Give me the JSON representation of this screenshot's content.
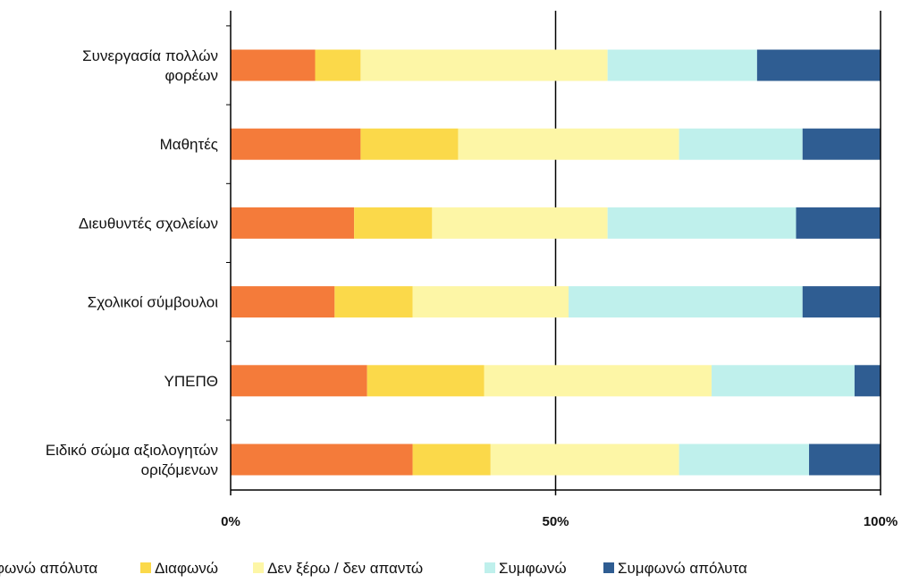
{
  "chart_data": {
    "type": "bar",
    "orientation": "horizontal",
    "stacked": "percent",
    "categories": [
      "Συνεργασία πολλών φορέων",
      "Μαθητές",
      "Διευθυντές σχολείων",
      "Σχολικοί σύμβουλοι",
      "ΥΠΕΠΘ",
      "Ειδικό σώμα αξιολογητών οριζόμενων"
    ],
    "category_lines": [
      [
        "Συνεργασία πολλών",
        "φορέων"
      ],
      [
        "Μαθητές"
      ],
      [
        "Διευθυντές σχολείων"
      ],
      [
        "Σχολικοί σύμβουλοι"
      ],
      [
        "ΥΠΕΠΘ"
      ],
      [
        "Ειδικό σώμα αξιολογητών",
        "οριζόμενων"
      ]
    ],
    "series": [
      {
        "name": "Διαφωνώ απόλυτα",
        "color": "#f47b3a",
        "values": [
          13,
          20,
          19,
          16,
          21,
          28
        ]
      },
      {
        "name": "Διαφωνώ",
        "color": "#fbd94a",
        "values": [
          7,
          15,
          12,
          12,
          18,
          12
        ]
      },
      {
        "name": "Δεν ξέρω / δεν απαντώ",
        "color": "#fdf6a6",
        "values": [
          38,
          34,
          27,
          24,
          35,
          29
        ]
      },
      {
        "name": "Συμφωνώ",
        "color": "#bff0ec",
        "values": [
          23,
          19,
          29,
          36,
          22,
          20
        ]
      },
      {
        "name": "Συμφωνώ απόλυτα",
        "color": "#2f5d92",
        "values": [
          19,
          12,
          13,
          12,
          4,
          11
        ]
      }
    ],
    "x_ticks": [
      "0%",
      "50%",
      "100%"
    ],
    "xlim": [
      0,
      100
    ],
    "grid": "vertical at 50%",
    "legend_position": "bottom",
    "legend_visible_labels": [
      "φωνώ απόλυτα",
      "Διαφωνώ",
      "Δεν ξέρω / δεν απαντώ",
      "Συμφωνώ",
      "Συμφωνώ απόλυτα"
    ]
  }
}
